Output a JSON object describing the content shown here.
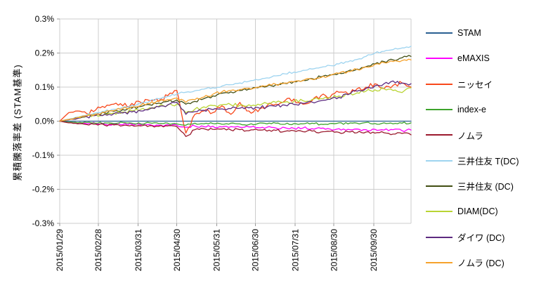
{
  "chart_data": {
    "type": "line",
    "title": "",
    "ylabel": "累積騰落率差 (STAM基準)",
    "xlabel": "",
    "ylim": [
      -0.3,
      0.3
    ],
    "grid": true,
    "legend_position": "right",
    "y_ticks": [
      {
        "value": 0.3,
        "label": "0.3%"
      },
      {
        "value": 0.2,
        "label": "0.2%"
      },
      {
        "value": 0.1,
        "label": "0.1%"
      },
      {
        "value": 0.0,
        "label": "0.0%"
      },
      {
        "value": -0.1,
        "label": "-0.1%"
      },
      {
        "value": -0.2,
        "label": "-0.2%"
      },
      {
        "value": -0.3,
        "label": "-0.3%"
      }
    ],
    "x_domain_days": [
      0,
      273
    ],
    "sample_interval_days": 7,
    "x_ticks": [
      {
        "day": 0,
        "label": "2015/01/29"
      },
      {
        "day": 30,
        "label": "2015/02/28"
      },
      {
        "day": 61,
        "label": "2015/03/31"
      },
      {
        "day": 91,
        "label": "2015/04/30"
      },
      {
        "day": 122,
        "label": "2015/05/31"
      },
      {
        "day": 152,
        "label": "2015/06/30"
      },
      {
        "day": 183,
        "label": "2015/07/31"
      },
      {
        "day": 213,
        "label": "2015/08/30"
      },
      {
        "day": 244,
        "label": "2015/09/30"
      }
    ],
    "series": [
      {
        "name": "STAM",
        "color": "#2A6092",
        "jitter": 0,
        "values": [
          0,
          0,
          0,
          0,
          0,
          0,
          0,
          0,
          0,
          0,
          0,
          0,
          0,
          0,
          0,
          0,
          0,
          0,
          0,
          0,
          0,
          0,
          0,
          0,
          0,
          0,
          0,
          0,
          0,
          0,
          0,
          0,
          0,
          0,
          0,
          0,
          0,
          0,
          0,
          0
        ]
      },
      {
        "name": "eMAXIS",
        "color": "#FF00FF",
        "jitter": 0.004,
        "values": [
          0,
          -0.004,
          -0.006,
          -0.008,
          -0.007,
          -0.009,
          -0.008,
          -0.01,
          -0.009,
          -0.011,
          -0.01,
          -0.012,
          -0.01,
          -0.012,
          -0.018,
          -0.014,
          -0.016,
          -0.015,
          -0.017,
          -0.016,
          -0.018,
          -0.017,
          -0.019,
          -0.018,
          -0.02,
          -0.019,
          -0.021,
          -0.02,
          -0.022,
          -0.021,
          -0.023,
          -0.022,
          -0.024,
          -0.023,
          -0.025,
          -0.024,
          -0.026,
          -0.025,
          -0.028,
          -0.026
        ]
      },
      {
        "name": "ニッセイ",
        "color": "#F8481C",
        "jitter": 0.007,
        "values": [
          0,
          0.025,
          0.03,
          0.022,
          0.033,
          0.04,
          0.05,
          0.045,
          0.052,
          0.055,
          0.06,
          0.058,
          0.075,
          0.09,
          -0.035,
          0.02,
          0.03,
          0.025,
          0.045,
          0.02,
          0.055,
          0.03,
          0.028,
          0.045,
          0.05,
          0.06,
          0.065,
          0.05,
          0.06,
          0.075,
          0.07,
          0.085,
          0.08,
          0.095,
          0.1,
          0.11,
          0.095,
          0.105,
          0.112,
          0.1
        ]
      },
      {
        "name": "index-e",
        "color": "#3DA32C",
        "jitter": 0.003,
        "values": [
          0,
          -0.003,
          -0.005,
          -0.004,
          -0.006,
          -0.005,
          -0.007,
          -0.004,
          -0.006,
          -0.008,
          -0.005,
          -0.007,
          -0.006,
          -0.008,
          -0.012,
          -0.006,
          -0.008,
          -0.007,
          -0.009,
          -0.006,
          -0.008,
          -0.01,
          -0.007,
          -0.008,
          -0.006,
          -0.009,
          -0.007,
          -0.008,
          -0.006,
          -0.009,
          -0.007,
          -0.005,
          -0.008,
          -0.006,
          -0.004,
          -0.007,
          -0.005,
          -0.008,
          -0.006,
          -0.005
        ]
      },
      {
        "name": "ノムラ",
        "color": "#9B1A2E",
        "jitter": 0.004,
        "values": [
          0,
          -0.005,
          -0.008,
          -0.01,
          -0.009,
          -0.012,
          -0.011,
          -0.013,
          -0.012,
          -0.014,
          -0.013,
          -0.015,
          -0.014,
          -0.016,
          -0.045,
          -0.025,
          -0.022,
          -0.024,
          -0.023,
          -0.026,
          -0.025,
          -0.028,
          -0.026,
          -0.029,
          -0.027,
          -0.03,
          -0.028,
          -0.031,
          -0.029,
          -0.032,
          -0.03,
          -0.033,
          -0.031,
          -0.034,
          -0.032,
          -0.035,
          -0.034,
          -0.038,
          -0.036,
          -0.04
        ]
      },
      {
        "name": "三井住友 T(DC)",
        "color": "#9ED4F0",
        "jitter": 0.003,
        "values": [
          0,
          0.006,
          0.012,
          0.018,
          0.024,
          0.029,
          0.035,
          0.041,
          0.046,
          0.052,
          0.059,
          0.066,
          0.073,
          0.08,
          0.085,
          0.089,
          0.094,
          0.098,
          0.103,
          0.107,
          0.112,
          0.117,
          0.121,
          0.127,
          0.133,
          0.139,
          0.144,
          0.149,
          0.153,
          0.158,
          0.163,
          0.168,
          0.174,
          0.181,
          0.19,
          0.2,
          0.205,
          0.21,
          0.215,
          0.22
        ]
      },
      {
        "name": "三井住友 (DC)",
        "color": "#414E13",
        "jitter": 0.004,
        "values": [
          0,
          0.005,
          0.01,
          0.015,
          0.02,
          0.024,
          0.029,
          0.034,
          0.038,
          0.043,
          0.048,
          0.053,
          0.058,
          0.062,
          0.05,
          0.058,
          0.066,
          0.074,
          0.082,
          0.086,
          0.09,
          0.094,
          0.098,
          0.102,
          0.107,
          0.111,
          0.116,
          0.12,
          0.125,
          0.13,
          0.136,
          0.141,
          0.147,
          0.153,
          0.16,
          0.168,
          0.175,
          0.18,
          0.186,
          0.19
        ]
      },
      {
        "name": "DIAM(DC)",
        "color": "#B9D434",
        "jitter": 0.005,
        "values": [
          0,
          0.005,
          0.009,
          0.014,
          0.018,
          0.021,
          0.024,
          0.027,
          0.031,
          0.035,
          0.04,
          0.044,
          0.047,
          0.05,
          0.025,
          0.035,
          0.042,
          0.046,
          0.048,
          0.048,
          0.047,
          0.048,
          0.05,
          0.052,
          0.055,
          0.056,
          0.058,
          0.06,
          0.063,
          0.066,
          0.07,
          0.074,
          0.078,
          0.083,
          0.088,
          0.092,
          0.095,
          0.09,
          0.084,
          0.098
        ]
      },
      {
        "name": "ダイワ (DC)",
        "color": "#5D2B80",
        "jitter": 0.005,
        "values": [
          0,
          0.004,
          0.008,
          0.013,
          0.017,
          0.02,
          0.022,
          0.024,
          0.027,
          0.03,
          0.036,
          0.042,
          0.048,
          0.055,
          0.02,
          0.028,
          0.032,
          0.034,
          0.036,
          0.037,
          0.038,
          0.039,
          0.04,
          0.042,
          0.044,
          0.047,
          0.049,
          0.052,
          0.056,
          0.06,
          0.064,
          0.07,
          0.078,
          0.088,
          0.096,
          0.104,
          0.11,
          0.118,
          0.112,
          0.11
        ]
      },
      {
        "name": "ノムラ (DC)",
        "color": "#F6A22C",
        "jitter": 0.004,
        "values": [
          0,
          0.005,
          0.011,
          0.016,
          0.021,
          0.026,
          0.031,
          0.037,
          0.042,
          0.047,
          0.052,
          0.058,
          0.063,
          0.068,
          0.055,
          0.063,
          0.071,
          0.079,
          0.086,
          0.09,
          0.093,
          0.097,
          0.1,
          0.104,
          0.108,
          0.112,
          0.115,
          0.119,
          0.123,
          0.128,
          0.134,
          0.14,
          0.146,
          0.152,
          0.159,
          0.167,
          0.172,
          0.175,
          0.178,
          0.18
        ]
      }
    ]
  }
}
